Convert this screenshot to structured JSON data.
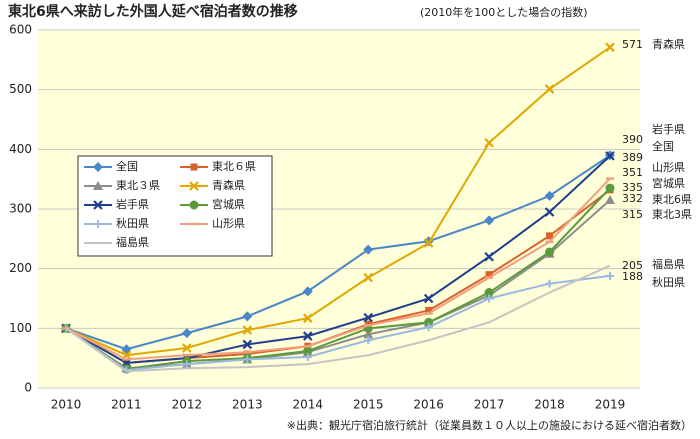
{
  "chart_data": {
    "type": "line",
    "title": "東北6県へ来訪した外国人延べ宿泊者数の推移",
    "subtitle": "(2010年を100とした場合の指数)",
    "source": "※出典：観光庁宿泊旅行統計（従業員数１０人以上の施設における延べ宿泊者数）",
    "categories": [
      "2010",
      "2011",
      "2012",
      "2013",
      "2014",
      "2015",
      "2016",
      "2017",
      "2018",
      "2019"
    ],
    "ylim": [
      0,
      600
    ],
    "yticks": [
      0,
      100,
      200,
      300,
      400,
      500,
      600
    ],
    "grid": true,
    "legend": "left",
    "series": [
      {
        "name": "全国",
        "end_label": "全国",
        "color": "#4a86c8",
        "marker": "diamond",
        "values": [
          100,
          65,
          92,
          120,
          162,
          232,
          246,
          281,
          322,
          390
        ]
      },
      {
        "name": "東北６県",
        "end_label": "東北6県",
        "color": "#d9622b",
        "marker": "square",
        "values": [
          100,
          42,
          50,
          57,
          70,
          107,
          130,
          190,
          255,
          332
        ]
      },
      {
        "name": "東北３県",
        "end_label": "東北3県",
        "color": "#8c8c8c",
        "marker": "triangle",
        "values": [
          100,
          33,
          40,
          48,
          60,
          90,
          110,
          155,
          225,
          315
        ]
      },
      {
        "name": "青森県",
        "end_label": "青森県",
        "color": "#e0a800",
        "marker": "x",
        "values": [
          100,
          55,
          67,
          97,
          117,
          185,
          243,
          411,
          501,
          571
        ]
      },
      {
        "name": "岩手県",
        "end_label": "岩手県",
        "color": "#1f3f8f",
        "marker": "x",
        "values": [
          100,
          42,
          50,
          73,
          87,
          118,
          150,
          220,
          295,
          389
        ]
      },
      {
        "name": "宮城県",
        "end_label": "宮城県",
        "color": "#5a9a3a",
        "marker": "circle",
        "values": [
          100,
          32,
          45,
          50,
          62,
          100,
          110,
          160,
          228,
          335
        ]
      },
      {
        "name": "秋田県",
        "end_label": "秋田県",
        "color": "#9ab8e0",
        "marker": "plus",
        "values": [
          100,
          30,
          40,
          48,
          52,
          80,
          102,
          150,
          175,
          188
        ]
      },
      {
        "name": "山形県",
        "end_label": "山形県",
        "color": "#f0a080",
        "marker": "dash",
        "values": [
          100,
          48,
          55,
          60,
          70,
          105,
          125,
          185,
          245,
          351
        ]
      },
      {
        "name": "福島県",
        "end_label": "福島県",
        "color": "#c4c4c4",
        "marker": "none",
        "values": [
          100,
          28,
          33,
          35,
          40,
          55,
          80,
          110,
          160,
          205
        ]
      }
    ]
  }
}
